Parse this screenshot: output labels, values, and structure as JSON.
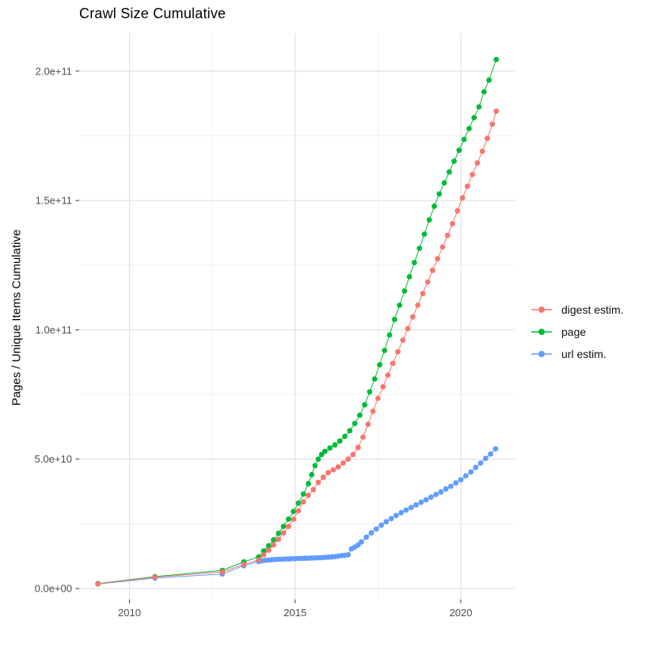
{
  "title": "Crawl Size Cumulative",
  "colors": {
    "grid_major": "#e3e3e3",
    "grid_minor": "#f0f0f0",
    "tick_mark": "#333333",
    "tick_text": "#4d4d4d",
    "title_text": "#000000",
    "background": "#ffffff"
  },
  "chart_data": {
    "type": "line",
    "title": "Crawl Size Cumulative",
    "xlabel": "",
    "ylabel": "Pages / Unique Items Cumulative",
    "legend_position": "right",
    "grid": true,
    "xlim": [
      2008.6,
      2021.7
    ],
    "ylim": [
      0,
      213000000000.0
    ],
    "x_ticks": [
      {
        "value": 2010,
        "label": "2010"
      },
      {
        "value": 2015,
        "label": "2015"
      },
      {
        "value": 2020,
        "label": "2020"
      }
    ],
    "y_ticks": [
      {
        "value": 0,
        "label": "0.0e+00"
      },
      {
        "value": 50000000000.0,
        "label": "5.0e+10"
      },
      {
        "value": 100000000000.0,
        "label": "1.0e+11"
      },
      {
        "value": 150000000000.0,
        "label": "1.5e+11"
      },
      {
        "value": 200000000000.0,
        "label": "2.0e+11"
      }
    ],
    "x_minor_ticks": [
      2012.5,
      2017.5
    ],
    "y_minor_ticks": [
      25000000000.0,
      75000000000.0,
      125000000000.0,
      175000000000.0
    ],
    "series": [
      {
        "name": "digest estim.",
        "color": "#F8766D",
        "points": [
          [
            2009.05,
            1800000000.0
          ],
          [
            2010.77,
            4400000000.0
          ],
          [
            2012.8,
            6400000000.0
          ],
          [
            2013.45,
            9300000000.0
          ],
          [
            2013.9,
            11000000000.0
          ],
          [
            2014.05,
            13000000000.0
          ],
          [
            2014.2,
            14800000000.0
          ],
          [
            2014.35,
            16800000000.0
          ],
          [
            2014.5,
            19000000000.0
          ],
          [
            2014.65,
            21500000000.0
          ],
          [
            2014.8,
            24000000000.0
          ],
          [
            2014.95,
            26800000000.0
          ],
          [
            2015.1,
            30000000000.0
          ],
          [
            2015.25,
            33500000000.0
          ],
          [
            2015.4,
            36000000000.0
          ],
          [
            2015.55,
            38200000000.0
          ],
          [
            2015.7,
            41000000000.0
          ],
          [
            2015.85,
            43000000000.0
          ],
          [
            2016.0,
            44800000000.0
          ],
          [
            2016.15,
            45900000000.0
          ],
          [
            2016.3,
            47000000000.0
          ],
          [
            2016.45,
            48500000000.0
          ],
          [
            2016.6,
            50000000000.0
          ],
          [
            2016.75,
            51800000000.0
          ],
          [
            2016.9,
            54500000000.0
          ],
          [
            2017.05,
            58500000000.0
          ],
          [
            2017.2,
            63500000000.0
          ],
          [
            2017.35,
            68500000000.0
          ],
          [
            2017.5,
            73500000000.0
          ],
          [
            2017.65,
            78000000000.0
          ],
          [
            2017.8,
            82500000000.0
          ],
          [
            2017.95,
            87000000000.0
          ],
          [
            2018.1,
            91500000000.0
          ],
          [
            2018.25,
            96000000000.0
          ],
          [
            2018.4,
            100500000000.0
          ],
          [
            2018.55,
            105000000000.0
          ],
          [
            2018.7,
            109500000000.0
          ],
          [
            2018.85,
            114000000000.0
          ],
          [
            2019.0,
            118500000000.0
          ],
          [
            2019.15,
            123000000000.0
          ],
          [
            2019.3,
            127500000000.0
          ],
          [
            2019.45,
            132000000000.0
          ],
          [
            2019.6,
            136500000000.0
          ],
          [
            2019.75,
            141000000000.0
          ],
          [
            2019.9,
            146000000000.0
          ],
          [
            2020.05,
            151000000000.0
          ],
          [
            2020.2,
            155500000000.0
          ],
          [
            2020.35,
            160000000000.0
          ],
          [
            2020.5,
            164500000000.0
          ],
          [
            2020.65,
            169000000000.0
          ],
          [
            2020.8,
            174000000000.0
          ],
          [
            2020.95,
            179500000000.0
          ],
          [
            2021.07,
            184500000000.0
          ]
        ]
      },
      {
        "name": "page",
        "color": "#00BA38",
        "points": [
          [
            2009.05,
            1900000000.0
          ],
          [
            2010.77,
            4600000000.0
          ],
          [
            2012.8,
            7000000000.0
          ],
          [
            2013.45,
            10300000000.0
          ],
          [
            2013.9,
            12200000000.0
          ],
          [
            2014.05,
            14500000000.0
          ],
          [
            2014.2,
            16500000000.0
          ],
          [
            2014.35,
            18800000000.0
          ],
          [
            2014.5,
            21300000000.0
          ],
          [
            2014.65,
            24000000000.0
          ],
          [
            2014.8,
            26800000000.0
          ],
          [
            2014.95,
            29800000000.0
          ],
          [
            2015.1,
            33000000000.0
          ],
          [
            2015.25,
            36500000000.0
          ],
          [
            2015.4,
            40500000000.0
          ],
          [
            2015.5,
            44000000000.0
          ],
          [
            2015.6,
            47500000000.0
          ],
          [
            2015.7,
            50000000000.0
          ],
          [
            2015.8,
            51800000000.0
          ],
          [
            2015.9,
            53000000000.0
          ],
          [
            2016.05,
            54300000000.0
          ],
          [
            2016.2,
            55500000000.0
          ],
          [
            2016.35,
            57000000000.0
          ],
          [
            2016.5,
            58800000000.0
          ],
          [
            2016.65,
            61000000000.0
          ],
          [
            2016.8,
            63800000000.0
          ],
          [
            2016.95,
            67000000000.0
          ],
          [
            2017.1,
            71000000000.0
          ],
          [
            2017.25,
            76000000000.0
          ],
          [
            2017.4,
            81000000000.0
          ],
          [
            2017.55,
            86500000000.0
          ],
          [
            2017.7,
            92000000000.0
          ],
          [
            2017.85,
            98000000000.0
          ],
          [
            2018.0,
            104000000000.0
          ],
          [
            2018.15,
            109500000000.0
          ],
          [
            2018.3,
            115000000000.0
          ],
          [
            2018.45,
            120500000000.0
          ],
          [
            2018.6,
            126000000000.0
          ],
          [
            2018.75,
            131500000000.0
          ],
          [
            2018.9,
            137000000000.0
          ],
          [
            2019.05,
            142500000000.0
          ],
          [
            2019.2,
            147800000000.0
          ],
          [
            2019.35,
            152500000000.0
          ],
          [
            2019.5,
            156800000000.0
          ],
          [
            2019.65,
            161000000000.0
          ],
          [
            2019.8,
            165200000000.0
          ],
          [
            2019.95,
            169400000000.0
          ],
          [
            2020.1,
            173600000000.0
          ],
          [
            2020.25,
            177800000000.0
          ],
          [
            2020.4,
            182000000000.0
          ],
          [
            2020.55,
            186200000000.0
          ],
          [
            2020.7,
            192000000000.0
          ],
          [
            2020.85,
            196500000000.0
          ],
          [
            2021.07,
            204500000000.0
          ]
        ]
      },
      {
        "name": "url estim.",
        "color": "#619CFF",
        "points": [
          [
            2009.05,
            1700000000.0
          ],
          [
            2010.77,
            4000000000.0
          ],
          [
            2012.8,
            5600000000.0
          ],
          [
            2013.45,
            8800000000.0
          ],
          [
            2013.9,
            10400000000.0
          ],
          [
            2014.0,
            10700000000.0
          ],
          [
            2014.1,
            10900000000.0
          ],
          [
            2014.2,
            11000000000.0
          ],
          [
            2014.3,
            11100000000.0
          ],
          [
            2014.4,
            11200000000.0
          ],
          [
            2014.5,
            11300000000.0
          ],
          [
            2014.6,
            11300000000.0
          ],
          [
            2014.7,
            11400000000.0
          ],
          [
            2014.8,
            11400000000.0
          ],
          [
            2014.9,
            11500000000.0
          ],
          [
            2015.0,
            11500000000.0
          ],
          [
            2015.1,
            11600000000.0
          ],
          [
            2015.2,
            11600000000.0
          ],
          [
            2015.3,
            11700000000.0
          ],
          [
            2015.4,
            11700000000.0
          ],
          [
            2015.5,
            11800000000.0
          ],
          [
            2015.6,
            11800000000.0
          ],
          [
            2015.7,
            11900000000.0
          ],
          [
            2015.8,
            11900000000.0
          ],
          [
            2015.9,
            12000000000.0
          ],
          [
            2016.0,
            12100000000.0
          ],
          [
            2016.1,
            12200000000.0
          ],
          [
            2016.2,
            12300000000.0
          ],
          [
            2016.3,
            12500000000.0
          ],
          [
            2016.4,
            12700000000.0
          ],
          [
            2016.5,
            12800000000.0
          ],
          [
            2016.6,
            13000000000.0
          ],
          [
            2016.7,
            15300000000.0
          ],
          [
            2016.8,
            16000000000.0
          ],
          [
            2016.9,
            16800000000.0
          ],
          [
            2017.0,
            18000000000.0
          ],
          [
            2017.15,
            19800000000.0
          ],
          [
            2017.3,
            21500000000.0
          ],
          [
            2017.45,
            23000000000.0
          ],
          [
            2017.6,
            24500000000.0
          ],
          [
            2017.75,
            25800000000.0
          ],
          [
            2017.9,
            27000000000.0
          ],
          [
            2018.05,
            28200000000.0
          ],
          [
            2018.2,
            29300000000.0
          ],
          [
            2018.35,
            30300000000.0
          ],
          [
            2018.5,
            31300000000.0
          ],
          [
            2018.65,
            32300000000.0
          ],
          [
            2018.8,
            33300000000.0
          ],
          [
            2018.95,
            34300000000.0
          ],
          [
            2019.1,
            35300000000.0
          ],
          [
            2019.25,
            36300000000.0
          ],
          [
            2019.4,
            37300000000.0
          ],
          [
            2019.55,
            38500000000.0
          ],
          [
            2019.7,
            39500000000.0
          ],
          [
            2019.85,
            40800000000.0
          ],
          [
            2020.0,
            42000000000.0
          ],
          [
            2020.15,
            43500000000.0
          ],
          [
            2020.3,
            45000000000.0
          ],
          [
            2020.45,
            46800000000.0
          ],
          [
            2020.6,
            48500000000.0
          ],
          [
            2020.75,
            50300000000.0
          ],
          [
            2020.9,
            52000000000.0
          ],
          [
            2021.05,
            54000000000.0
          ]
        ]
      }
    ]
  }
}
